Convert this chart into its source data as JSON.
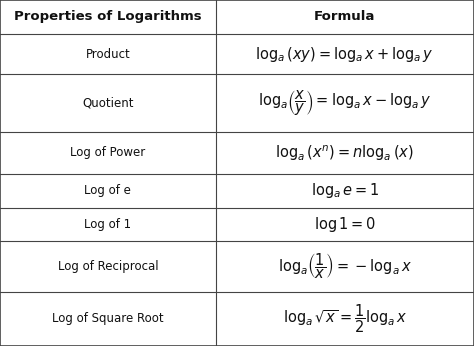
{
  "title_col1": "Properties of Logarithms",
  "title_col2": "Formula",
  "rows": [
    {
      "property": "Product"
    },
    {
      "property": "Quotient"
    },
    {
      "property": "Log of Power"
    },
    {
      "property": "Log of e"
    },
    {
      "property": "Log of 1"
    },
    {
      "property": "Log of Reciprocal"
    },
    {
      "property": "Log of Square Root"
    }
  ],
  "formulas": [
    "$\\log_{a}(xy) = \\log_{a}x + \\log_{a}y$",
    "$\\log_{a}\\!\\left(\\dfrac{x}{y}\\right) = \\log_{a}x - \\log_{a}y$",
    "$\\log_{a}(x^{n}) = n\\log_{a}(x)$",
    "$\\log_{a}e = 1$",
    "$\\log 1 = 0$",
    "$\\log_{a}\\!\\left(\\dfrac{1}{x}\\right) = -\\log_{a}x$",
    "$\\log_{a}\\sqrt{x} = \\dfrac{1}{2}\\log_{a}x$"
  ],
  "background_color": "#ffffff",
  "header_bg": "#ffffff",
  "border_color": "#444444",
  "text_color": "#111111",
  "col_split": 0.455,
  "fig_width": 4.74,
  "fig_height": 3.46,
  "header_fontsize": 9.5,
  "property_fontsize": 8.5,
  "formula_fontsize": 10.5,
  "row_heights_rel": [
    1.0,
    1.2,
    1.7,
    1.25,
    1.0,
    1.0,
    1.5,
    1.6
  ]
}
